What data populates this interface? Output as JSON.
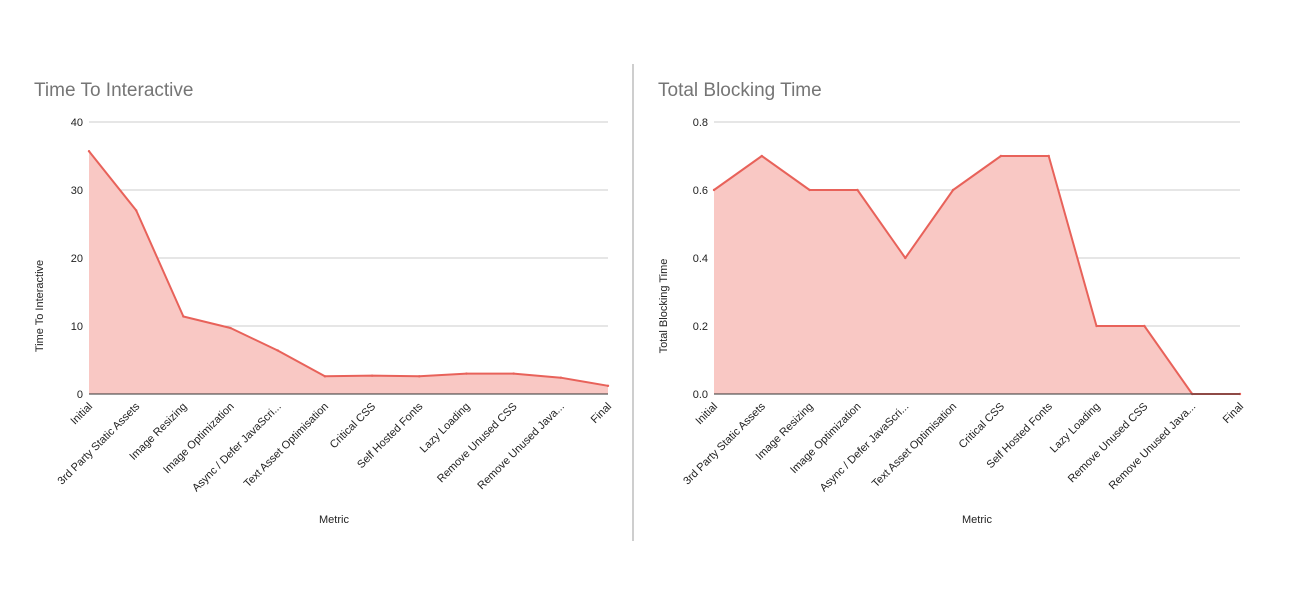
{
  "chart_data": [
    {
      "type": "area",
      "title": "Time To Interactive",
      "xlabel": "Metric",
      "ylabel": "Time To Interactive",
      "ylim": [
        0,
        40
      ],
      "yticks": [
        "0",
        "10",
        "20",
        "30",
        "40"
      ],
      "grid": true,
      "color": "#e8625a",
      "fill_color": "#f9c8c4",
      "categories": [
        "Initial",
        "3rd Party Static Assets",
        "Image Resizing",
        "Image Optimization",
        "Async / Defer JavaScri...",
        "Text Asset Optimisation",
        "Critical CSS",
        "Self Hosted Fonts",
        "Lazy Loading",
        "Remove Unused CSS",
        "Remove Unused Java...",
        "Final"
      ],
      "series": [
        {
          "values": [
            35.7,
            27,
            11.4,
            9.7,
            6.4,
            2.6,
            2.7,
            2.6,
            3,
            3,
            2.4,
            1.2
          ]
        }
      ]
    },
    {
      "type": "area",
      "title": "Total Blocking Time",
      "xlabel": "Metric",
      "ylabel": "Total Blocking Time",
      "ylim": [
        0,
        0.8
      ],
      "yticks": [
        "0.0",
        "0.2",
        "0.4",
        "0.6",
        "0.8"
      ],
      "grid": true,
      "color": "#e8625a",
      "fill_color": "#f9c8c4",
      "categories": [
        "Initial",
        "3rd Party Static Assets",
        "Image Resizing",
        "Image Optimization",
        "Async / Defer JavaScri...",
        "Text Asset Optimisation",
        "Critical CSS",
        "Self Hosted Fonts",
        "Lazy Loading",
        "Remove Unused CSS",
        "Remove Unused Java...",
        "Final"
      ],
      "series": [
        {
          "values": [
            0.6,
            0.7,
            0.6,
            0.6,
            0.4,
            0.6,
            0.7,
            0.7,
            0.2,
            0.2,
            0,
            0
          ]
        }
      ]
    }
  ]
}
